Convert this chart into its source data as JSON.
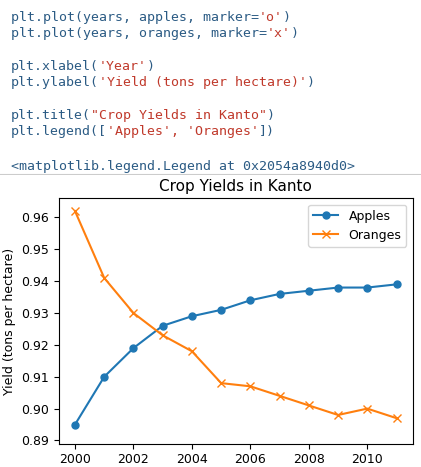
{
  "years": [
    2000,
    2001,
    2002,
    2003,
    2004,
    2005,
    2006,
    2007,
    2008,
    2009,
    2010,
    2011
  ],
  "apples": [
    0.895,
    0.91,
    0.919,
    0.926,
    0.929,
    0.931,
    0.934,
    0.936,
    0.937,
    0.938,
    0.938,
    0.939
  ],
  "oranges": [
    0.962,
    0.941,
    0.93,
    0.923,
    0.918,
    0.908,
    0.907,
    0.904,
    0.901,
    0.898,
    0.9,
    0.897
  ],
  "title": "Crop Yields in Kanto",
  "xlabel": "Year",
  "ylabel": "Yield (tons per hectare)",
  "legend_apples": "Apples",
  "legend_oranges": "Oranges",
  "apples_color": "#1f77b4",
  "oranges_color": "#ff7f0e",
  "apples_marker": "o",
  "oranges_marker": "x",
  "code_bg": "#f2f2f2",
  "white_bg": "#ffffff",
  "code_color": "#2b5b84",
  "string_color": "#c0392b",
  "output_text": "<matplotlib.legend.Legend at 0x2054a8940d0>",
  "xticks": [
    2000,
    2002,
    2004,
    2006,
    2008,
    2010
  ],
  "ylim": [
    0.889,
    0.966
  ],
  "separator_color": "#cccccc",
  "code_fontsize": 9.5,
  "plot_title_fontsize": 11,
  "plot_label_fontsize": 10,
  "plot_ylabel_fontsize": 9
}
